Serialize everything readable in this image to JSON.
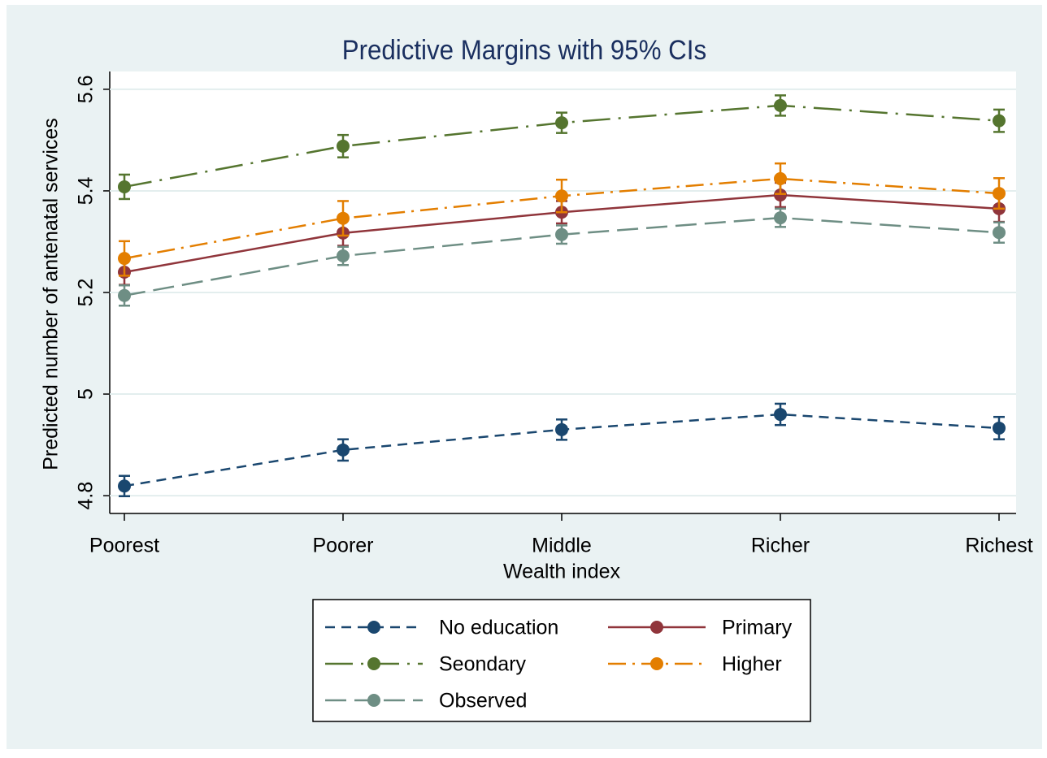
{
  "chart_data": {
    "type": "line",
    "title": "Predictive Margins with 95% CIs",
    "x_label": "Wealth index",
    "y_label": "Predicted number of antenatal services",
    "categories": [
      "Poorest",
      "Poorer",
      "Middle",
      "Richer",
      "Richest"
    ],
    "ylim": [
      4.765,
      5.635
    ],
    "yticks": [
      4.8,
      5,
      5.2,
      5.4,
      5.6
    ],
    "grid": true,
    "legend": "bottom",
    "series": [
      {
        "name": "No education",
        "color": "#1a476f",
        "line_style": "dashed",
        "values": [
          4.819,
          4.89,
          4.93,
          4.96,
          4.933
        ],
        "errors": [
          0.02,
          0.021,
          0.02,
          0.021,
          0.022
        ]
      },
      {
        "name": "Primary",
        "color": "#90353b",
        "line_style": "solid",
        "values": [
          5.24,
          5.317,
          5.358,
          5.392,
          5.365
        ],
        "errors": [
          0.025,
          0.025,
          0.022,
          0.024,
          0.026
        ]
      },
      {
        "name": "Seondary",
        "color": "#55752f",
        "line_style": "longdashdot",
        "values": [
          5.408,
          5.488,
          5.534,
          5.568,
          5.538
        ],
        "errors": [
          0.024,
          0.022,
          0.02,
          0.02,
          0.022
        ]
      },
      {
        "name": "Higher",
        "color": "#e37e00",
        "line_style": "dashdot",
        "values": [
          5.267,
          5.346,
          5.39,
          5.424,
          5.395
        ],
        "errors": [
          0.034,
          0.034,
          0.032,
          0.03,
          0.03
        ]
      },
      {
        "name": "Observed",
        "color": "#6e8e84",
        "line_style": "longdash",
        "values": [
          5.194,
          5.272,
          5.314,
          5.347,
          5.318
        ],
        "errors": [
          0.02,
          0.018,
          0.018,
          0.018,
          0.02
        ]
      }
    ]
  }
}
